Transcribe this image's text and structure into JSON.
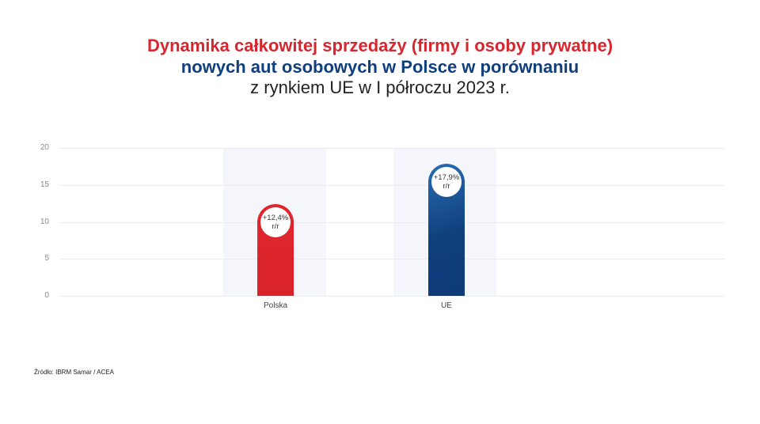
{
  "title": {
    "line1": "Dynamika całkowitej sprzedaży (firmy i osoby prywatne)",
    "line2": "nowych aut osobowych w Polsce w porównaniu",
    "line3": "z rynkiem UE w I półroczu 2023 r."
  },
  "source": "Źródło: IBRM Samar / ACEA",
  "chart_data": {
    "type": "bar",
    "title": "Dynamika całkowitej sprzedaży (firmy i osoby prywatne) nowych aut osobowych w Polsce w porównaniu z rynkiem UE w I półroczu 2023 r.",
    "categories": [
      "Polska",
      "UE"
    ],
    "values": [
      12.4,
      17.9
    ],
    "value_labels": [
      "+12,4%",
      "+17,9%"
    ],
    "value_sublabel": "r/r",
    "colors": [
      "#e0262d",
      "#0f3f7c"
    ],
    "xlabel": "",
    "ylabel": "",
    "ylim": [
      0,
      20
    ],
    "yticks": [
      "0",
      "5",
      "10",
      "15",
      "20"
    ],
    "grid": true,
    "legend": null
  }
}
